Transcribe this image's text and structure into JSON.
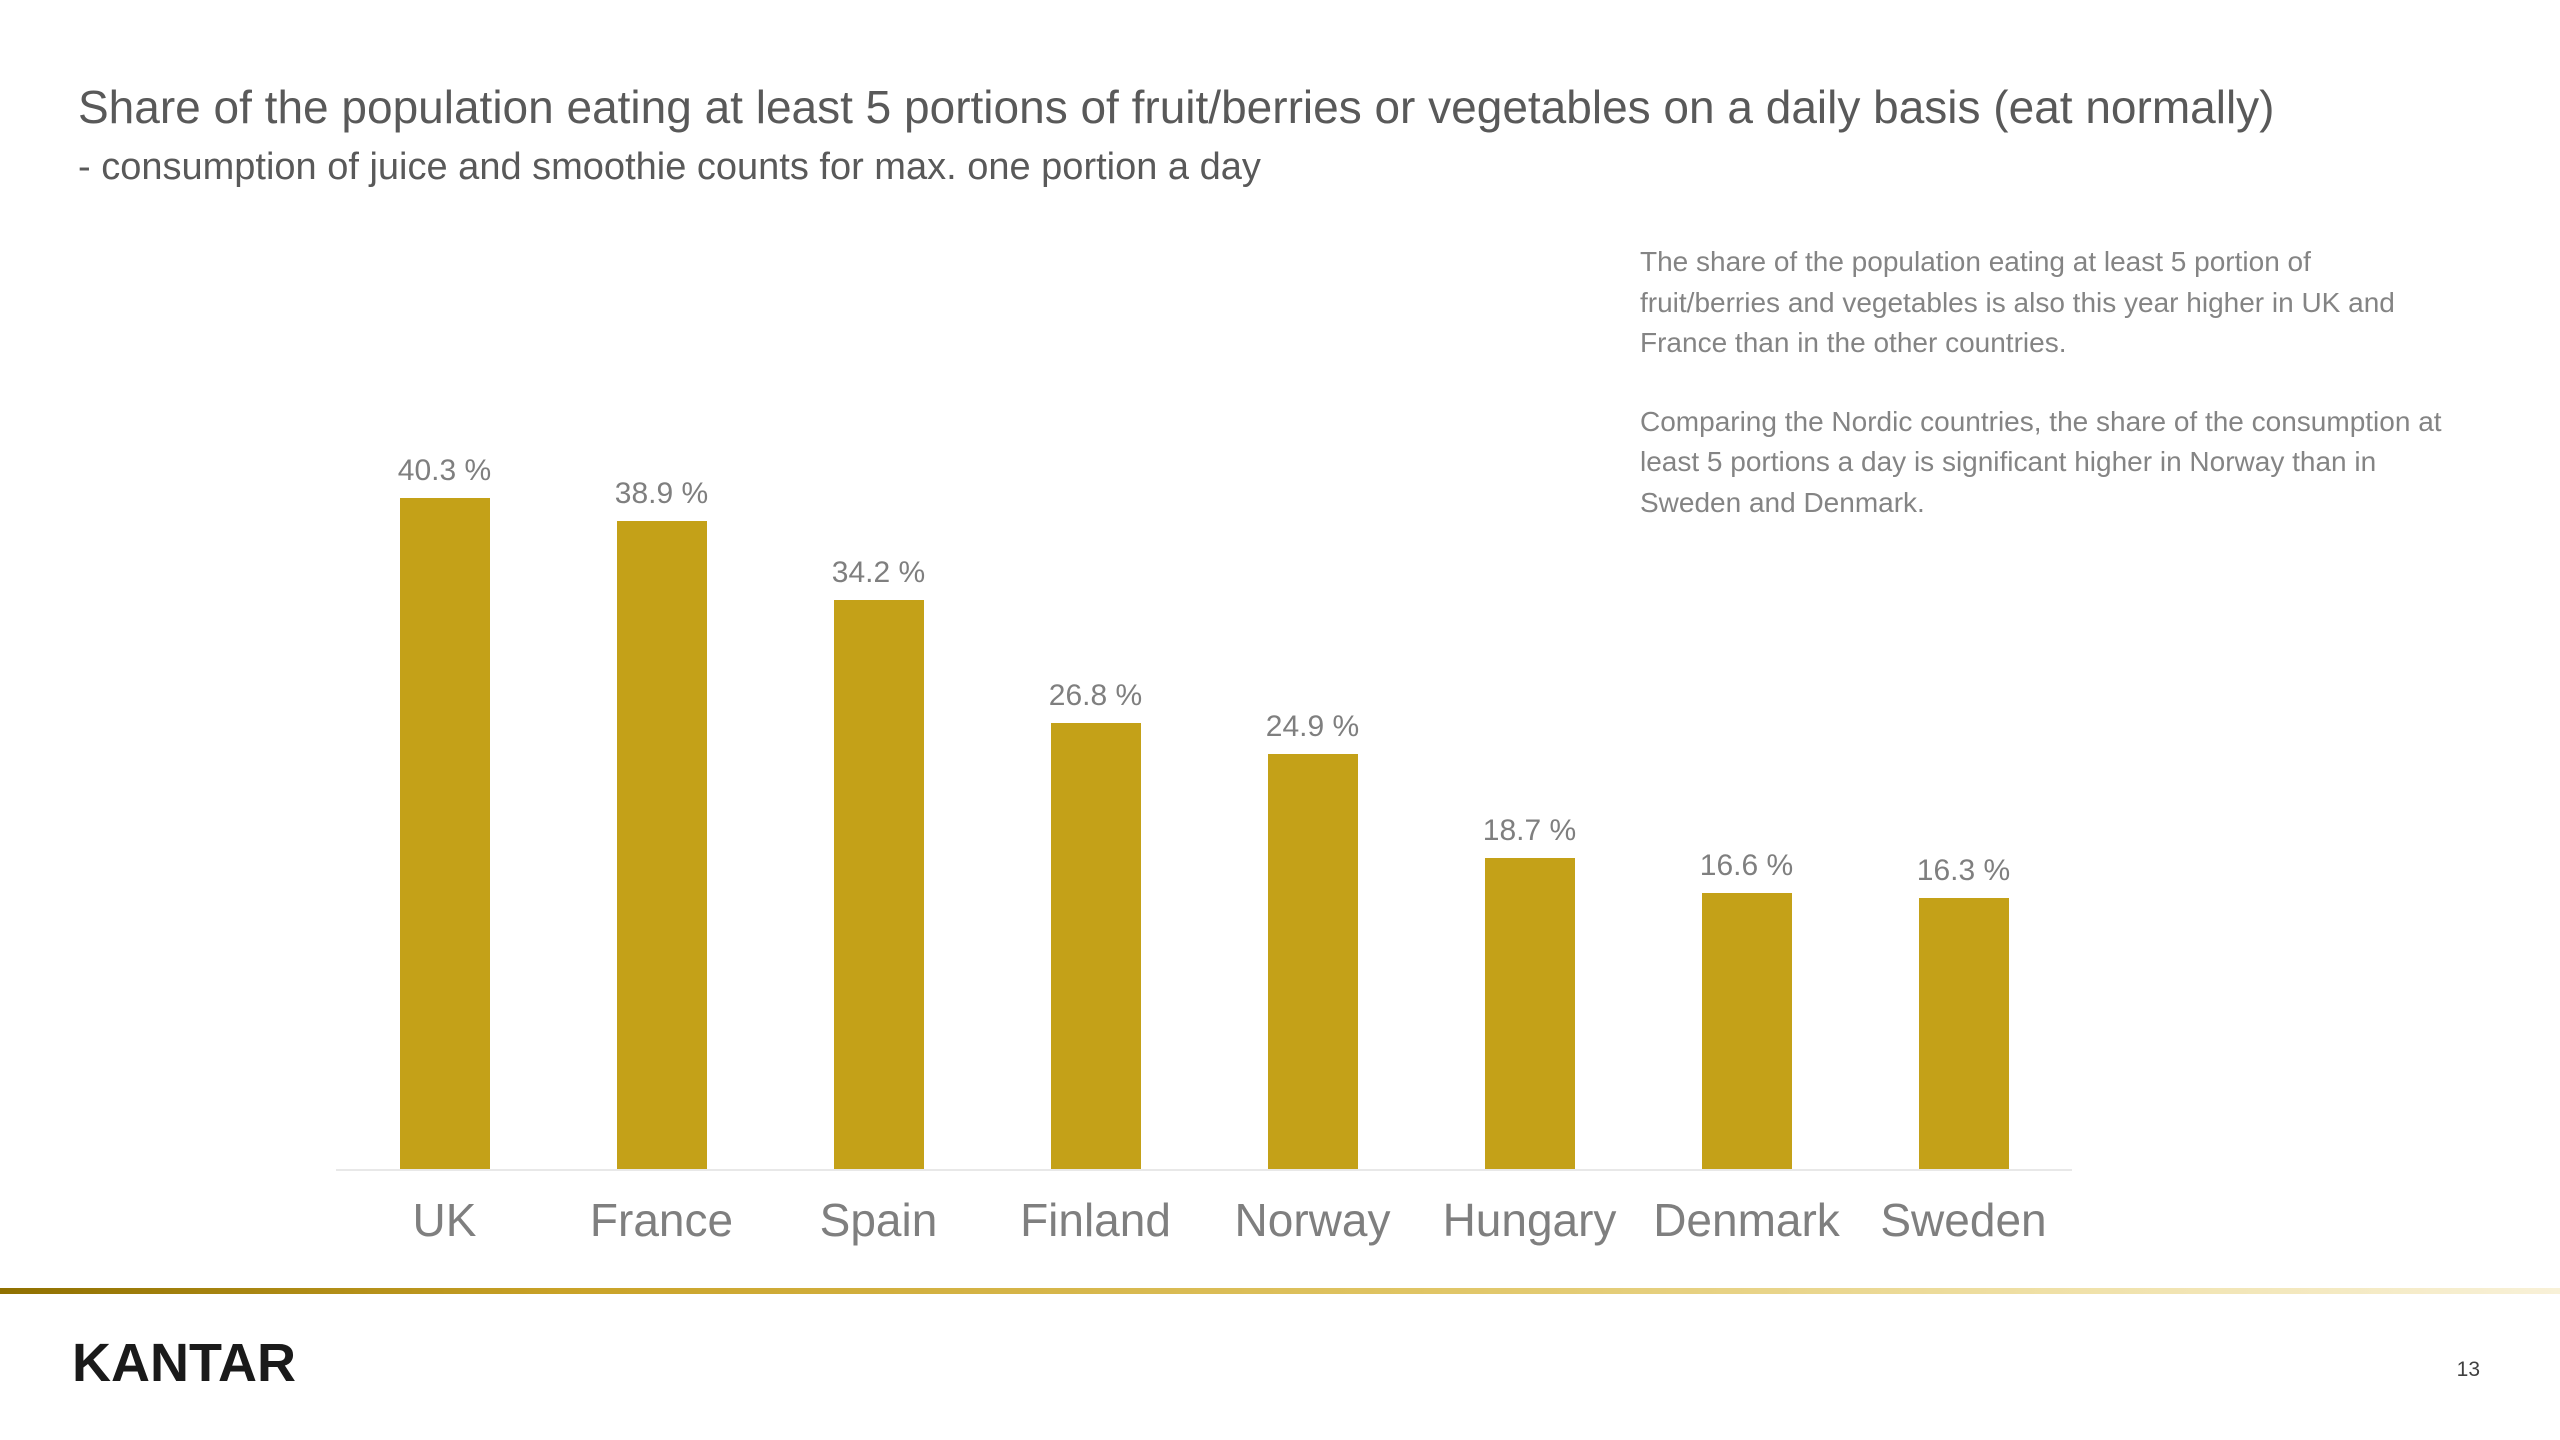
{
  "slide": {
    "title": "Share of the population eating at least 5 portions of fruit/berries or vegetables on a daily basis  (eat normally)",
    "subtitle": "- consumption of juice and smoothie counts for max. one portion a day",
    "commentary": [
      "The share of the population eating at least 5 portion of fruit/berries and vegetables is also this year higher in UK and France than in the other countries.",
      "Comparing the Nordic countries, the share of the consumption at least 5 portions a day is significant higher in Norway than in Sweden and Denmark."
    ],
    "logo_text": "KANTAR",
    "page_number": "13"
  },
  "chart_data": {
    "type": "bar",
    "categories": [
      "UK",
      "France",
      "Spain",
      "Finland",
      "Norway",
      "Hungary",
      "Denmark",
      "Sweden"
    ],
    "values": [
      40.3,
      38.9,
      34.2,
      26.8,
      24.9,
      18.7,
      16.6,
      16.3
    ],
    "labels": [
      "40.3 %",
      "38.9 %",
      "34.2 %",
      "26.8 %",
      "24.9 %",
      "18.7 %",
      "16.6 %",
      "16.3 %"
    ],
    "title": "",
    "xlabel": "",
    "ylabel": "",
    "ylim": [
      0,
      45
    ],
    "grid": false,
    "legend": false,
    "bar_color": "#c4a118"
  },
  "colors": {
    "bar": "#c4a118",
    "title_text": "#595959",
    "muted_text": "#7f7f7f",
    "accent_gold": "#c9a227"
  }
}
